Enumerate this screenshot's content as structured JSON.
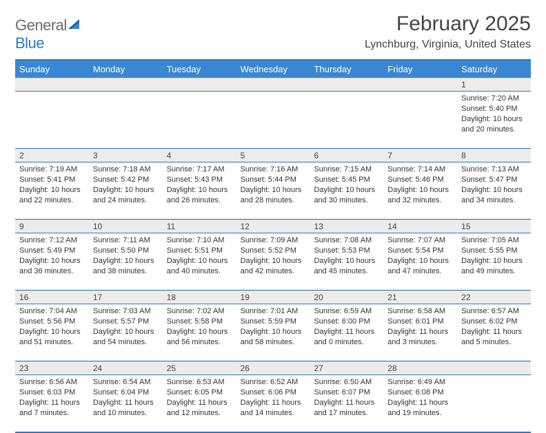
{
  "logo": {
    "word1": "General",
    "word2": "Blue"
  },
  "title": "February 2025",
  "location": "Lynchburg, Virginia, United States",
  "day_headers": [
    "Sunday",
    "Monday",
    "Tuesday",
    "Wednesday",
    "Thursday",
    "Friday",
    "Saturday"
  ],
  "colors": {
    "header_bg": "#3a87d1",
    "border": "#2d78c4",
    "shade": "#ececec",
    "text": "#333333"
  },
  "weeks": [
    [
      {
        "n": "",
        "sunrise": "",
        "sunset": "",
        "daylight": ""
      },
      {
        "n": "",
        "sunrise": "",
        "sunset": "",
        "daylight": ""
      },
      {
        "n": "",
        "sunrise": "",
        "sunset": "",
        "daylight": ""
      },
      {
        "n": "",
        "sunrise": "",
        "sunset": "",
        "daylight": ""
      },
      {
        "n": "",
        "sunrise": "",
        "sunset": "",
        "daylight": ""
      },
      {
        "n": "",
        "sunrise": "",
        "sunset": "",
        "daylight": ""
      },
      {
        "n": "1",
        "sunrise": "Sunrise: 7:20 AM",
        "sunset": "Sunset: 5:40 PM",
        "daylight": "Daylight: 10 hours and 20 minutes."
      }
    ],
    [
      {
        "n": "2",
        "sunrise": "Sunrise: 7:19 AM",
        "sunset": "Sunset: 5:41 PM",
        "daylight": "Daylight: 10 hours and 22 minutes."
      },
      {
        "n": "3",
        "sunrise": "Sunrise: 7:18 AM",
        "sunset": "Sunset: 5:42 PM",
        "daylight": "Daylight: 10 hours and 24 minutes."
      },
      {
        "n": "4",
        "sunrise": "Sunrise: 7:17 AM",
        "sunset": "Sunset: 5:43 PM",
        "daylight": "Daylight: 10 hours and 26 minutes."
      },
      {
        "n": "5",
        "sunrise": "Sunrise: 7:16 AM",
        "sunset": "Sunset: 5:44 PM",
        "daylight": "Daylight: 10 hours and 28 minutes."
      },
      {
        "n": "6",
        "sunrise": "Sunrise: 7:15 AM",
        "sunset": "Sunset: 5:45 PM",
        "daylight": "Daylight: 10 hours and 30 minutes."
      },
      {
        "n": "7",
        "sunrise": "Sunrise: 7:14 AM",
        "sunset": "Sunset: 5:46 PM",
        "daylight": "Daylight: 10 hours and 32 minutes."
      },
      {
        "n": "8",
        "sunrise": "Sunrise: 7:13 AM",
        "sunset": "Sunset: 5:47 PM",
        "daylight": "Daylight: 10 hours and 34 minutes."
      }
    ],
    [
      {
        "n": "9",
        "sunrise": "Sunrise: 7:12 AM",
        "sunset": "Sunset: 5:49 PM",
        "daylight": "Daylight: 10 hours and 36 minutes."
      },
      {
        "n": "10",
        "sunrise": "Sunrise: 7:11 AM",
        "sunset": "Sunset: 5:50 PM",
        "daylight": "Daylight: 10 hours and 38 minutes."
      },
      {
        "n": "11",
        "sunrise": "Sunrise: 7:10 AM",
        "sunset": "Sunset: 5:51 PM",
        "daylight": "Daylight: 10 hours and 40 minutes."
      },
      {
        "n": "12",
        "sunrise": "Sunrise: 7:09 AM",
        "sunset": "Sunset: 5:52 PM",
        "daylight": "Daylight: 10 hours and 42 minutes."
      },
      {
        "n": "13",
        "sunrise": "Sunrise: 7:08 AM",
        "sunset": "Sunset: 5:53 PM",
        "daylight": "Daylight: 10 hours and 45 minutes."
      },
      {
        "n": "14",
        "sunrise": "Sunrise: 7:07 AM",
        "sunset": "Sunset: 5:54 PM",
        "daylight": "Daylight: 10 hours and 47 minutes."
      },
      {
        "n": "15",
        "sunrise": "Sunrise: 7:05 AM",
        "sunset": "Sunset: 5:55 PM",
        "daylight": "Daylight: 10 hours and 49 minutes."
      }
    ],
    [
      {
        "n": "16",
        "sunrise": "Sunrise: 7:04 AM",
        "sunset": "Sunset: 5:56 PM",
        "daylight": "Daylight: 10 hours and 51 minutes."
      },
      {
        "n": "17",
        "sunrise": "Sunrise: 7:03 AM",
        "sunset": "Sunset: 5:57 PM",
        "daylight": "Daylight: 10 hours and 54 minutes."
      },
      {
        "n": "18",
        "sunrise": "Sunrise: 7:02 AM",
        "sunset": "Sunset: 5:58 PM",
        "daylight": "Daylight: 10 hours and 56 minutes."
      },
      {
        "n": "19",
        "sunrise": "Sunrise: 7:01 AM",
        "sunset": "Sunset: 5:59 PM",
        "daylight": "Daylight: 10 hours and 58 minutes."
      },
      {
        "n": "20",
        "sunrise": "Sunrise: 6:59 AM",
        "sunset": "Sunset: 6:00 PM",
        "daylight": "Daylight: 11 hours and 0 minutes."
      },
      {
        "n": "21",
        "sunrise": "Sunrise: 6:58 AM",
        "sunset": "Sunset: 6:01 PM",
        "daylight": "Daylight: 11 hours and 3 minutes."
      },
      {
        "n": "22",
        "sunrise": "Sunrise: 6:57 AM",
        "sunset": "Sunset: 6:02 PM",
        "daylight": "Daylight: 11 hours and 5 minutes."
      }
    ],
    [
      {
        "n": "23",
        "sunrise": "Sunrise: 6:56 AM",
        "sunset": "Sunset: 6:03 PM",
        "daylight": "Daylight: 11 hours and 7 minutes."
      },
      {
        "n": "24",
        "sunrise": "Sunrise: 6:54 AM",
        "sunset": "Sunset: 6:04 PM",
        "daylight": "Daylight: 11 hours and 10 minutes."
      },
      {
        "n": "25",
        "sunrise": "Sunrise: 6:53 AM",
        "sunset": "Sunset: 6:05 PM",
        "daylight": "Daylight: 11 hours and 12 minutes."
      },
      {
        "n": "26",
        "sunrise": "Sunrise: 6:52 AM",
        "sunset": "Sunset: 6:06 PM",
        "daylight": "Daylight: 11 hours and 14 minutes."
      },
      {
        "n": "27",
        "sunrise": "Sunrise: 6:50 AM",
        "sunset": "Sunset: 6:07 PM",
        "daylight": "Daylight: 11 hours and 17 minutes."
      },
      {
        "n": "28",
        "sunrise": "Sunrise: 6:49 AM",
        "sunset": "Sunset: 6:08 PM",
        "daylight": "Daylight: 11 hours and 19 minutes."
      },
      {
        "n": "",
        "sunrise": "",
        "sunset": "",
        "daylight": ""
      }
    ]
  ]
}
